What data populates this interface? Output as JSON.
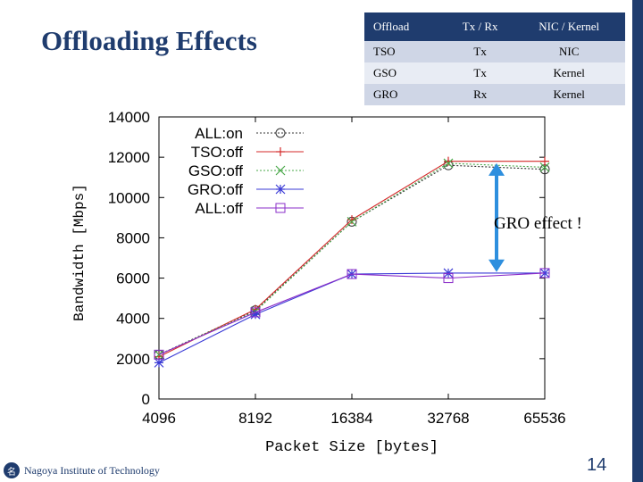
{
  "slide": {
    "title": "Offloading Effects",
    "page_number": "14",
    "institution": "Nagoya Institute of Technology",
    "logo_glyph": "名",
    "accent_color": "#1f3c6e"
  },
  "table": {
    "headers": [
      "Offload",
      "Tx / Rx",
      "NIC / Kernel"
    ],
    "rows": [
      [
        "TSO",
        "Tx",
        "NIC"
      ],
      [
        "GSO",
        "Tx",
        "Kernel"
      ],
      [
        "GRO",
        "Rx",
        "Kernel"
      ]
    ]
  },
  "annotation": {
    "label": "GRO effect !",
    "arrow_color": "#2e8fde",
    "from_value": 11700,
    "to_value": 6300,
    "x_category_index": 3.5
  },
  "chart_data": {
    "type": "line",
    "title": "",
    "xlabel": "Packet Size [bytes]",
    "ylabel": "Bandwidth [Mbps]",
    "categories": [
      "4096",
      "8192",
      "16384",
      "32768",
      "65536"
    ],
    "ylim": [
      0,
      14000
    ],
    "yticks": [
      0,
      2000,
      4000,
      6000,
      8000,
      10000,
      12000,
      14000
    ],
    "legend_position": "top-left",
    "series": [
      {
        "name": "ALL:on",
        "color": "#333333",
        "marker": "circle",
        "dash": "dotted",
        "values": [
          2200,
          4400,
          8800,
          11600,
          11400
        ]
      },
      {
        "name": "TSO:off",
        "color": "#d42a2a",
        "marker": "plus",
        "dash": "solid",
        "values": [
          2100,
          4450,
          8900,
          11800,
          11800
        ]
      },
      {
        "name": "GSO:off",
        "color": "#4aa84a",
        "marker": "x",
        "dash": "dotted",
        "values": [
          2200,
          4350,
          8800,
          11700,
          11500
        ]
      },
      {
        "name": "GRO:off",
        "color": "#3a3ad6",
        "marker": "star",
        "dash": "solid",
        "values": [
          1800,
          4200,
          6200,
          6250,
          6250
        ]
      },
      {
        "name": "ALL:off",
        "color": "#8a2cc8",
        "marker": "square",
        "dash": "solid",
        "values": [
          2200,
          4300,
          6200,
          6000,
          6250
        ]
      }
    ]
  }
}
